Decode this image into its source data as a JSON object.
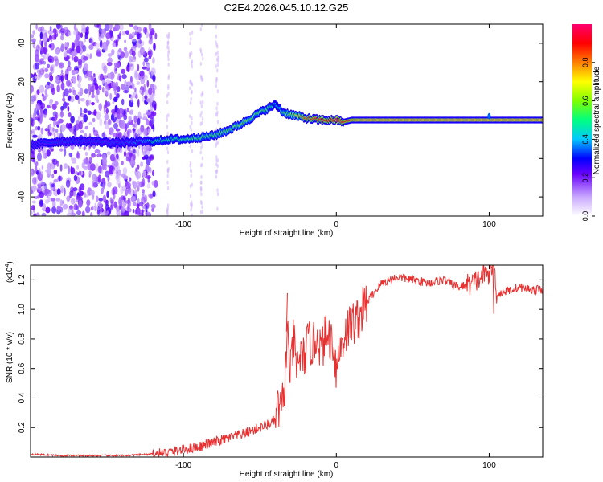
{
  "title": "C2E4.2026.045.10.12.G25",
  "chart_data": [
    {
      "type": "heatmap",
      "title": "C2E4.2026.045.10.12.G25",
      "xlabel": "Height of straight line (km)",
      "ylabel": "Frequency (Hz)",
      "xlim": [
        -200,
        135
      ],
      "ylim": [
        -50,
        50
      ],
      "xticks": [
        -100,
        0,
        100
      ],
      "yticks": [
        -40,
        -20,
        0,
        20,
        40
      ],
      "colorbar": {
        "label": "Normalized spectral amplitude",
        "range": [
          0,
          1
        ],
        "ticks": [
          0.0,
          0.2,
          0.4,
          0.6,
          0.8
        ],
        "tick_labels": [
          "0.0",
          "0.2",
          "0.4",
          "0.6",
          "0.8"
        ],
        "colors": [
          "#ffffff",
          "#c9a8ff",
          "#6a00ff",
          "#0000ff",
          "#00c8ff",
          "#00ff80",
          "#80ff00",
          "#ffff00",
          "#ff8000",
          "#ff0000",
          "#ff0070"
        ]
      },
      "noise_region_x": [
        -200,
        -118
      ],
      "ridge": {
        "x": [
          -200,
          -190,
          -180,
          -160,
          -140,
          -125,
          -118,
          -110,
          -100,
          -90,
          -80,
          -70,
          -60,
          -50,
          -45,
          -40,
          -38,
          -35,
          -30,
          -25,
          -20,
          -10,
          -5,
          0,
          5,
          10,
          20,
          50,
          100,
          135
        ],
        "freq": [
          -13,
          -12,
          -11,
          -11,
          -12,
          -11,
          -11,
          -10,
          -10,
          -9,
          -8,
          -5,
          -1,
          4,
          6,
          8,
          7,
          4,
          3,
          2,
          1,
          0,
          0,
          0,
          -1,
          0,
          0,
          0,
          0,
          0
        ],
        "amp": [
          0.3,
          0.32,
          0.34,
          0.33,
          0.34,
          0.38,
          0.5,
          0.5,
          0.52,
          0.55,
          0.55,
          0.58,
          0.6,
          0.55,
          0.55,
          0.45,
          0.45,
          0.55,
          0.6,
          0.75,
          0.85,
          0.9,
          0.9,
          0.95,
          0.9,
          0.95,
          1.0,
          1.0,
          1.0,
          1.0
        ]
      },
      "annotations": [
        {
          "x": 100,
          "freq": 2,
          "note": "short blip"
        }
      ]
    },
    {
      "type": "line",
      "xlabel": "Height of straight line (km)",
      "ylabel": "SNR (10 * v/v)",
      "yscale_label": "(x10",
      "yscale_exp": "4",
      "xlim": [
        -200,
        135
      ],
      "ylim": [
        0,
        1.3
      ],
      "xticks": [
        -100,
        0,
        100
      ],
      "yticks": [
        0.2,
        0.4,
        0.6,
        0.8,
        1.0,
        1.2
      ],
      "series": [
        {
          "name": "SNR",
          "color": "#e83030",
          "x": [
            -200,
            -180,
            -160,
            -140,
            -120,
            -110,
            -100,
            -90,
            -80,
            -70,
            -60,
            -50,
            -45,
            -40,
            -38,
            -36,
            -34,
            -32,
            -30,
            -28,
            -26,
            -24,
            -22,
            -20,
            -18,
            -15,
            -12,
            -10,
            -8,
            -5,
            -2,
            0,
            3,
            6,
            10,
            15,
            20,
            25,
            30,
            35,
            40,
            50,
            60,
            70,
            80,
            90,
            95,
            100,
            103,
            105,
            110,
            120,
            130,
            135
          ],
          "y": [
            0.02,
            0.01,
            0.01,
            0.01,
            0.02,
            0.03,
            0.05,
            0.07,
            0.1,
            0.13,
            0.16,
            0.2,
            0.22,
            0.25,
            0.34,
            0.3,
            0.45,
            0.85,
            0.55,
            0.8,
            0.58,
            0.7,
            0.65,
            0.72,
            0.78,
            0.75,
            0.85,
            0.7,
            0.8,
            0.82,
            0.78,
            0.6,
            0.75,
            0.85,
            0.9,
            0.95,
            1.05,
            1.12,
            1.18,
            1.2,
            1.22,
            1.2,
            1.18,
            1.2,
            1.15,
            1.18,
            1.22,
            1.25,
            1.3,
            1.1,
            1.12,
            1.15,
            1.13,
            1.14
          ]
        }
      ],
      "spikes": [
        {
          "x": -32,
          "y": 1.11
        },
        {
          "x": 102,
          "y": 1.29
        },
        {
          "x": 103,
          "y": 0.97
        }
      ]
    }
  ]
}
